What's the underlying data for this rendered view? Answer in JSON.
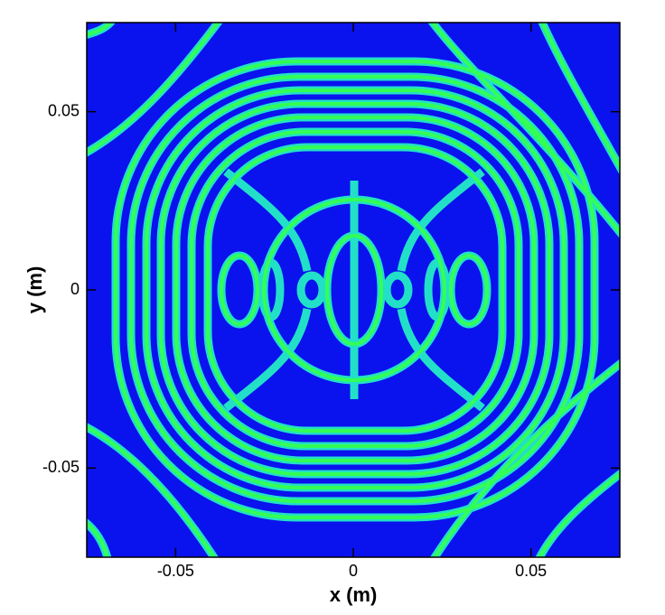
{
  "chart_data": {
    "type": "contour",
    "xlabel": "x (m)",
    "ylabel": "y (m)",
    "xlim": [
      -0.075,
      0.075
    ],
    "ylim": [
      -0.075,
      0.075
    ],
    "xticks": [
      -0.05,
      0,
      0.05
    ],
    "yticks": [
      -0.05,
      0,
      0.05
    ]
  }
}
